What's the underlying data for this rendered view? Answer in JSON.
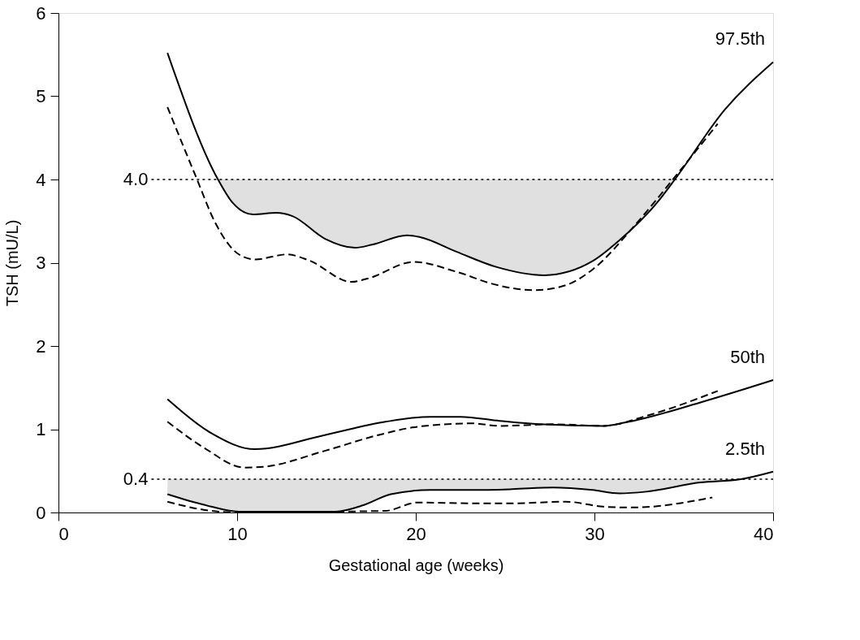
{
  "chart_data": {
    "type": "line",
    "xlabel": "Gestational age (weeks)",
    "ylabel": "TSH (mU/L)",
    "xlim": [
      0,
      40
    ],
    "xticks": [
      0,
      10,
      20,
      30,
      40
    ],
    "ylim": [
      0,
      6
    ],
    "yticks": [
      0,
      1,
      2,
      3,
      4,
      5,
      6
    ],
    "series": [
      {
        "name": "97.5th",
        "color": "#000000",
        "line_style": "solid",
        "x": [
          6.1,
          8.93,
          9.75,
          10.9,
          12.2,
          13.1,
          14.9,
          16.6,
          17.6,
          19.5,
          20.2,
          22.3,
          24.5,
          27.2,
          29.9,
          31.4,
          33.5,
          34.5,
          37.3,
          40
        ],
        "values": [
          5.52,
          4.0,
          3.72,
          3.58,
          3.6,
          3.56,
          3.29,
          3.18,
          3.22,
          3.33,
          3.31,
          3.13,
          2.95,
          2.85,
          3.02,
          3.27,
          3.72,
          4.0,
          4.84,
          5.41
        ],
        "lower": [
          null,
          4.0,
          3.72,
          3.58,
          3.6,
          3.56,
          3.29,
          3.18,
          3.22,
          3.33,
          3.31,
          3.13,
          2.95,
          2.85,
          3.02,
          3.27,
          3.72,
          4.0,
          null,
          null
        ],
        "upper": [
          null,
          4.0,
          4.0,
          4.0,
          4.0,
          4.0,
          4.0,
          4.0,
          4.0,
          4.0,
          4.0,
          4.0,
          4.0,
          4.0,
          4.0,
          4.0,
          4.0,
          4.0,
          null,
          null
        ]
      },
      {
        "color": "#000000",
        "line_style": "dashed",
        "x": [
          6.1,
          7.7,
          8.8,
          10.1,
          11.0,
          12.8,
          14.0,
          16.4,
          17.3,
          19.9,
          22.3,
          24.4,
          26.6,
          28.4,
          29.9,
          32.3,
          34.5,
          36.9
        ],
        "values": [
          4.87,
          4.03,
          3.47,
          3.1,
          3.04,
          3.1,
          3.03,
          2.77,
          2.81,
          3.01,
          2.89,
          2.74,
          2.67,
          2.73,
          2.92,
          3.46,
          4.03,
          4.67
        ]
      },
      {
        "name": "50th",
        "color": "#000000",
        "line_style": "solid",
        "x": [
          6.1,
          8.5,
          11.0,
          14.9,
          18.3,
          20.8,
          22.5,
          24.7,
          26.9,
          30.5,
          31.7,
          35.9,
          40
        ],
        "values": [
          1.36,
          0.96,
          0.76,
          0.93,
          1.09,
          1.15,
          1.15,
          1.1,
          1.06,
          1.04,
          1.08,
          1.32,
          1.59
        ]
      },
      {
        "color": "#000000",
        "line_style": "dashed",
        "x": [
          6.1,
          8.2,
          10.4,
          11.5,
          14.9,
          17.9,
          20.1,
          23.2,
          24.7,
          27.7,
          30.5,
          32.9,
          36.9
        ],
        "values": [
          1.09,
          0.77,
          0.54,
          0.55,
          0.74,
          0.93,
          1.03,
          1.07,
          1.04,
          1.06,
          1.04,
          1.16,
          1.46
        ]
      },
      {
        "name": "2.5th",
        "color": "#000000",
        "line_style": "solid",
        "x": [
          6.1,
          8.2,
          10.1,
          15.5,
          17.1,
          18.6,
          20.8,
          23.2,
          25.4,
          27.7,
          29.9,
          31.4,
          32.9,
          35.9,
          38.2,
          40
        ],
        "values": [
          0.22,
          0.09,
          0.01,
          0.01,
          0.09,
          0.22,
          0.27,
          0.27,
          0.28,
          0.3,
          0.27,
          0.23,
          0.25,
          0.36,
          0.4,
          0.49
        ],
        "lower": [
          0.22,
          0.09,
          0.01,
          0.01,
          0.09,
          0.22,
          0.27,
          0.27,
          0.28,
          0.3,
          0.27,
          0.23,
          0.25,
          0.36,
          0.4,
          null
        ],
        "upper": [
          0.4,
          0.4,
          0.4,
          0.4,
          0.4,
          0.4,
          0.4,
          0.4,
          0.4,
          0.4,
          0.4,
          0.4,
          0.4,
          0.4,
          0.4,
          null
        ]
      },
      {
        "color": "#000000",
        "line_style": "dashed",
        "x": [
          6.1,
          8.2,
          10.1,
          18.3,
          20.1,
          23.2,
          25.4,
          28.4,
          30.5,
          32.1,
          36.6
        ],
        "values": [
          0.13,
          0.03,
          0.0,
          0.02,
          0.12,
          0.11,
          0.11,
          0.13,
          0.07,
          0.06,
          0.18
        ]
      }
    ],
    "ref_lines": [
      {
        "axis": "y",
        "value": 4.0,
        "label": "4.0",
        "line_style": "dotted"
      },
      {
        "axis": "y",
        "value": 0.4,
        "label": "0.4",
        "line_style": "dotted"
      }
    ]
  }
}
